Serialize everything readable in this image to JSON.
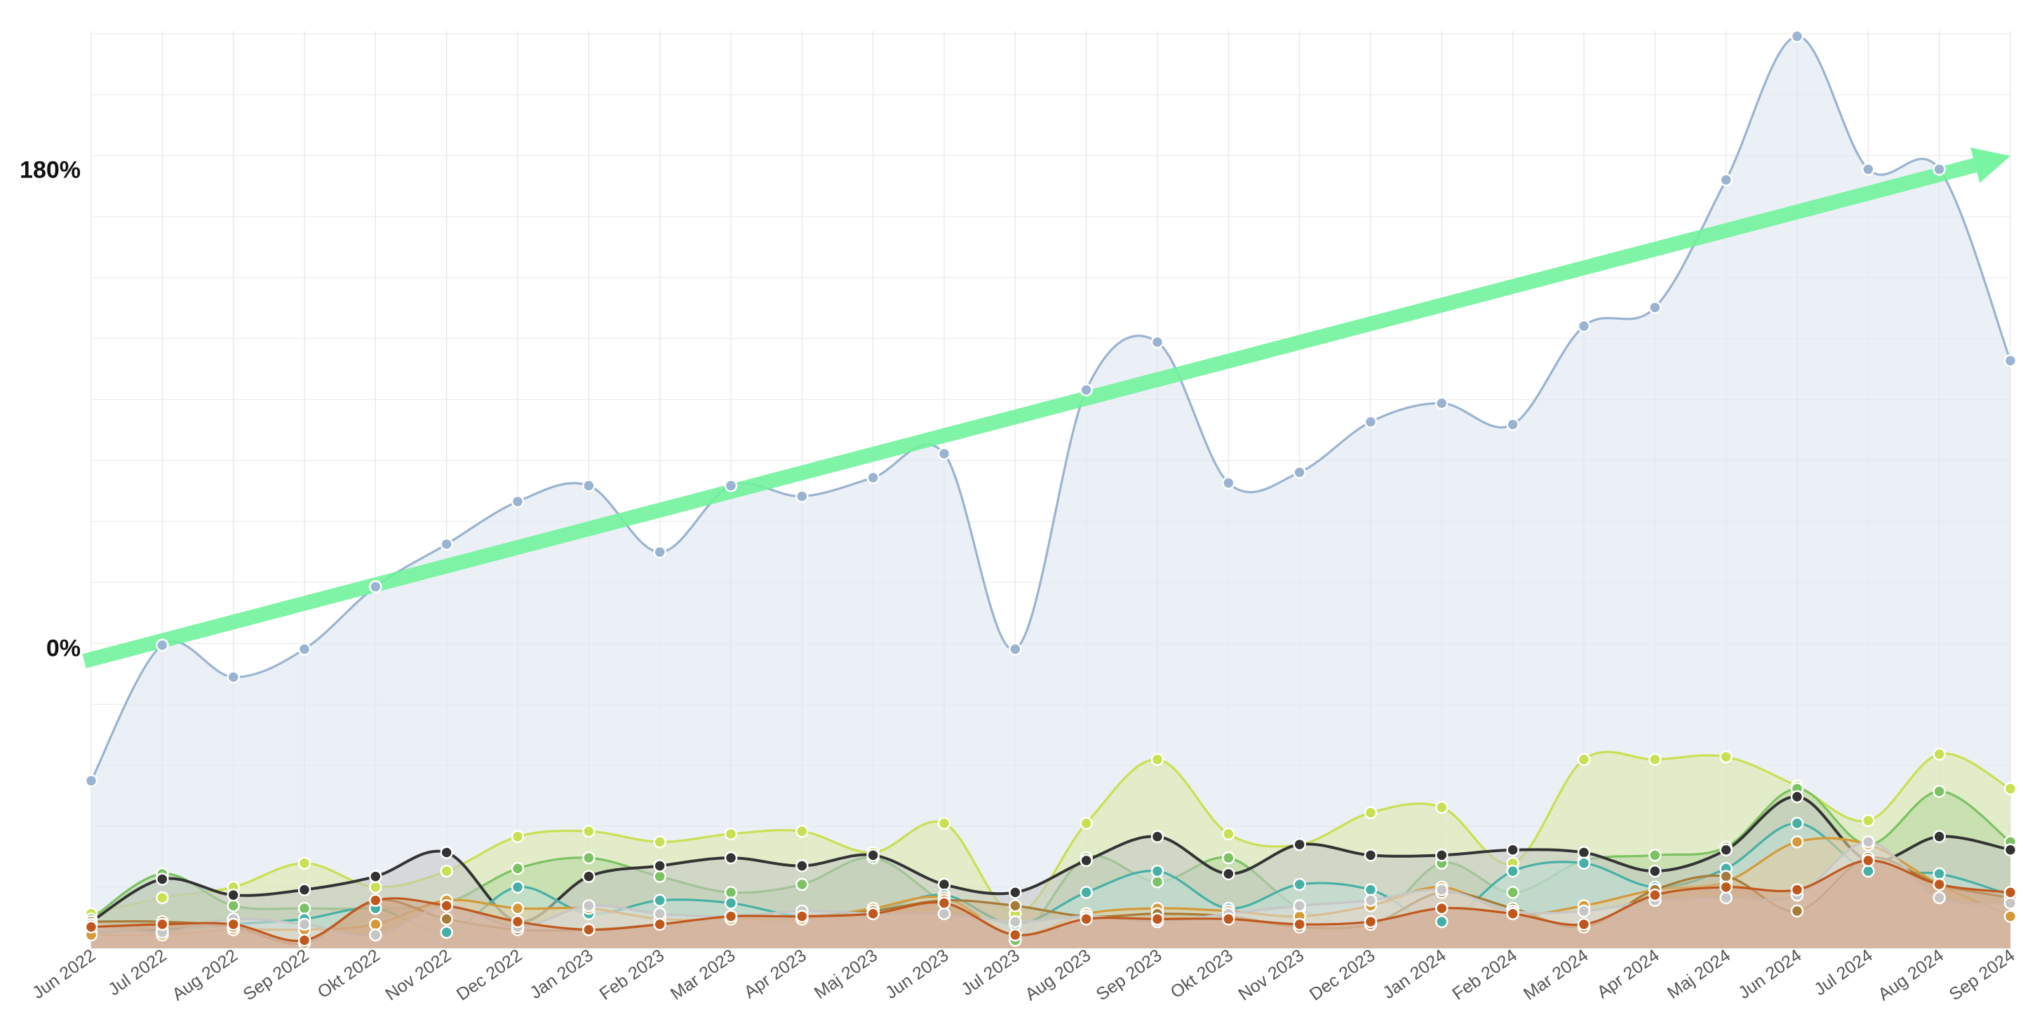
{
  "chart_data": {
    "type": "area",
    "categories": [
      "Jun 2022",
      "Jul 2022",
      "Aug 2022",
      "Sep 2022",
      "Okt 2022",
      "Nov 2022",
      "Dec 2022",
      "Jan 2023",
      "Feb 2023",
      "Mar 2023",
      "Apr 2023",
      "Maj 2023",
      "Jun 2023",
      "Jul 2023",
      "Aug 2023",
      "Sep 2023",
      "Okt 2023",
      "Nov 2023",
      "Dec 2023",
      "Jan 2024",
      "Feb 2024",
      "Mar 2024",
      "Apr 2024",
      "Maj 2024",
      "Jun 2024",
      "Jul 2024",
      "Aug 2024",
      "Sep 2024"
    ],
    "y_ticks": [
      {
        "label": "180%",
        "value": 180
      },
      {
        "label": "0%",
        "value": 0
      }
    ],
    "ylim": [
      -113,
      231
    ],
    "grid": true,
    "legend": "none",
    "series": [
      {
        "color": "#9ab3d1",
        "fill": "#dde6ef",
        "values": [
          -50,
          1,
          -11,
          -0.5,
          23,
          39,
          55,
          61,
          36,
          61,
          57,
          64,
          73,
          -0.5,
          97,
          115,
          62,
          66,
          85,
          92,
          84,
          121,
          128,
          176,
          230,
          180,
          180,
          108
        ]
      },
      {
        "color": "#c9e052",
        "fill": "#dbe9a2",
        "values": [
          -100,
          -94,
          -90,
          -81,
          -90,
          -84,
          -71,
          -69,
          -73,
          -70,
          -69,
          -77,
          -66,
          -100,
          -66,
          -42,
          -70,
          -74,
          -62,
          -60,
          -81,
          -42,
          -42,
          -41,
          -52,
          -65,
          -40,
          -53
        ]
      },
      {
        "color": "#7bc262",
        "fill": "#b4d79f",
        "values": [
          -102,
          -85,
          -97,
          -98,
          -98,
          -96,
          -83,
          -79,
          -86,
          -92,
          -89,
          -79,
          -96,
          -110,
          -79,
          -88,
          -79,
          -98,
          -104,
          -81,
          -92,
          -80,
          -78,
          -75,
          -53,
          -74,
          -54,
          -73
        ]
      },
      {
        "color": "#333333",
        "fill": "#c2c6c5",
        "values": [
          -103,
          -87,
          -93,
          -91,
          -86,
          -77,
          -103,
          -86,
          -82,
          -79,
          -82,
          -78,
          -89,
          -92,
          -80,
          -71,
          -85,
          -74,
          -78,
          -78,
          -76,
          -77,
          -84,
          -76,
          -56,
          -80,
          -71,
          -76
        ]
      },
      {
        "color": "#47b0a6",
        "fill": "#bedfd5",
        "values": [
          -107,
          -106,
          -104,
          -102,
          -98,
          -107,
          -90,
          -100,
          -95,
          -96,
          -101,
          -99,
          -93,
          -104,
          -92,
          -84,
          -98,
          -89,
          -91,
          -103,
          -84,
          -81,
          -90,
          -83,
          -66,
          -84,
          -85,
          -93
        ]
      },
      {
        "color": "#d49a39",
        "fill": "#e6cca0",
        "values": [
          -108,
          -108,
          -106,
          -106,
          -104,
          -95,
          -98,
          -98,
          -102,
          -102,
          -102,
          -98,
          -94,
          -108,
          -100,
          -98,
          -99,
          -101,
          -97,
          -90,
          -100,
          -97,
          -91,
          -88,
          -73,
          -74,
          -89,
          -101
        ]
      },
      {
        "color": "#a67c3a",
        "fill": "#cdb88f",
        "values": [
          -103,
          -103,
          -105,
          -111,
          -95,
          -102,
          -106,
          -106,
          -104,
          -101,
          -101,
          -99,
          -95,
          -97,
          -101,
          -100,
          -101,
          -105,
          -104,
          -92,
          -98,
          -105,
          -91,
          -86,
          -99,
          -79,
          -89,
          -94
        ]
      },
      {
        "color": "#c6c6c6",
        "fill": "#dcdcdc",
        "values": [
          -104,
          -107,
          -102,
          -104,
          -108,
          -97,
          -105,
          -97,
          -100,
          -101,
          -99,
          -100,
          -100,
          -103,
          -101,
          -103,
          -100,
          -97,
          -95,
          -91,
          -99,
          -99,
          -95,
          -94,
          -93,
          -73,
          -94,
          -96
        ]
      },
      {
        "color": "#c0581e",
        "fill": "#d4a386",
        "values": [
          -105,
          -104,
          -104,
          -110,
          -95,
          -97,
          -103,
          -106,
          -104,
          -101,
          -101,
          -100,
          -96,
          -108,
          -102,
          -102,
          -102,
          -104,
          -103,
          -98,
          -100,
          -104,
          -93,
          -90,
          -91,
          -80,
          -89,
          -92
        ]
      }
    ],
    "trend_arrow": {
      "color": "#6ef39a",
      "from": {
        "x": "Jun 2022",
        "y": -5
      },
      "to": {
        "x": "Sep 2024",
        "y": 185
      }
    }
  }
}
